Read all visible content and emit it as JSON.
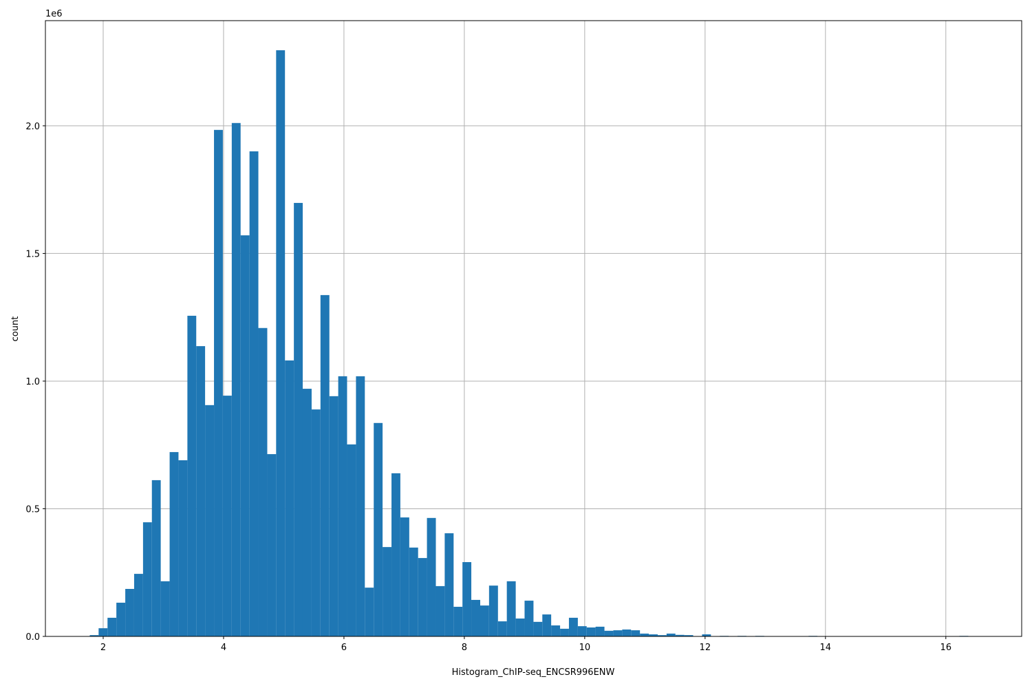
{
  "chart_data": {
    "type": "histogram",
    "x_label": "Histogram_ChIP-seq_ENCSR996ENW",
    "y_label": "count",
    "y_offset_label": "1e6",
    "color": "#1f77b4",
    "grid": true,
    "bins": [
      1.777,
      1.924,
      2.072,
      2.219,
      2.367,
      2.514,
      2.662,
      2.809,
      2.956,
      3.104,
      3.251,
      3.399,
      3.546,
      3.693,
      3.841,
      3.988,
      4.136,
      4.283,
      4.431,
      4.578,
      4.726,
      4.873,
      5.02,
      5.168,
      5.315,
      5.463,
      5.61,
      5.758,
      5.905,
      6.052,
      6.2,
      6.347,
      6.495,
      6.642,
      6.79,
      6.937,
      7.085,
      7.232,
      7.379,
      7.527,
      7.674,
      7.822,
      7.969,
      8.116,
      8.264,
      8.411,
      8.559,
      8.706,
      8.854,
      9.001,
      9.149,
      9.296,
      9.443,
      9.591,
      9.738,
      9.886,
      10.033,
      10.18,
      10.328,
      10.475,
      10.623,
      10.77,
      10.918,
      11.065,
      11.213,
      11.36,
      11.507,
      11.655,
      11.802,
      11.95,
      12.097,
      12.245,
      12.392,
      12.539,
      12.687,
      12.834,
      12.982,
      13.129,
      13.277,
      13.424,
      13.571,
      13.719,
      13.866,
      14.014,
      14.161,
      14.309,
      14.456,
      14.603,
      14.751,
      14.898,
      15.046,
      15.193,
      15.341,
      15.488,
      15.635,
      15.783,
      15.93,
      16.078,
      16.225,
      16.373,
      16.52
    ],
    "counts": [
      5000,
      32000,
      73000,
      132000,
      186000,
      245000,
      447000,
      612000,
      216000,
      722000,
      690000,
      1256000,
      1137000,
      906000,
      1984000,
      943000,
      2011000,
      1571000,
      1900000,
      1208000,
      714000,
      2296000,
      1081000,
      1698000,
      970000,
      889000,
      1337000,
      941000,
      1019000,
      752000,
      1019000,
      191000,
      836000,
      350000,
      639000,
      466000,
      348000,
      307000,
      464000,
      197000,
      404000,
      116000,
      291000,
      143000,
      121000,
      199000,
      59000,
      216000,
      70000,
      140000,
      57000,
      86000,
      43000,
      30000,
      73000,
      40000,
      35000,
      38000,
      22000,
      24000,
      27000,
      24000,
      11000,
      8000,
      5000,
      11000,
      6000,
      5000,
      1000,
      8000,
      0,
      2000,
      0,
      2000,
      0,
      2000,
      0,
      0,
      0,
      0,
      0,
      2000,
      0,
      0,
      0,
      0,
      0,
      0,
      0,
      0,
      0,
      0,
      0,
      0,
      0,
      0,
      0,
      0,
      2000,
      0
    ],
    "xlim": [
      1.04,
      17.26
    ],
    "ylim": [
      0,
      2412000
    ],
    "xticks": [
      2,
      4,
      6,
      8,
      10,
      12,
      14,
      16
    ],
    "yticks": [
      {
        "value": 0,
        "label": "0.0"
      },
      {
        "value": 500000,
        "label": "0.5"
      },
      {
        "value": 1000000,
        "label": "1.0"
      },
      {
        "value": 1500000,
        "label": "1.5"
      },
      {
        "value": 2000000,
        "label": "2.0"
      }
    ]
  }
}
